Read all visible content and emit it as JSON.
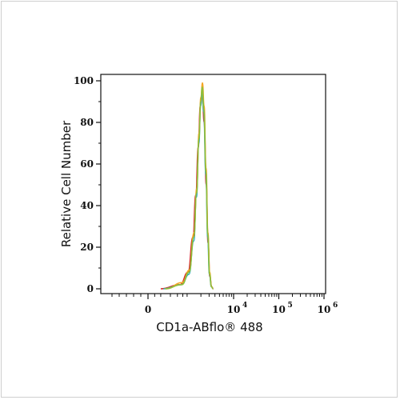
{
  "chart_data": {
    "type": "line",
    "title": "",
    "xlabel": "CD1a-ABflo® 488",
    "ylabel": "Relative Cell Number",
    "ylim": [
      0,
      100
    ],
    "x_scale": "biexponential",
    "y_ticks": [
      {
        "value": 0,
        "label": "0"
      },
      {
        "value": 20,
        "label": "20"
      },
      {
        "value": 40,
        "label": "40"
      },
      {
        "value": 60,
        "label": "60"
      },
      {
        "value": 80,
        "label": "80"
      },
      {
        "value": 100,
        "label": "100"
      }
    ],
    "x_ticks": [
      {
        "value": 0,
        "label": "0",
        "sup": ""
      },
      {
        "value": 10000,
        "label": "10",
        "sup": "4"
      },
      {
        "value": 100000,
        "label": "10",
        "sup": "5"
      },
      {
        "value": 1000000,
        "label": "10",
        "sup": "6"
      }
    ],
    "grid": false,
    "legend": "none",
    "series": [
      {
        "color": "#d62728",
        "points": [
          [
            200,
            0
          ],
          [
            700,
            2
          ],
          [
            1050,
            8
          ],
          [
            1350,
            25
          ],
          [
            1550,
            45
          ],
          [
            1750,
            68
          ],
          [
            1950,
            88
          ],
          [
            2150,
            93
          ],
          [
            2350,
            80
          ],
          [
            2600,
            50
          ],
          [
            2850,
            22
          ],
          [
            3100,
            6
          ],
          [
            3400,
            1
          ],
          [
            3700,
            0
          ]
        ]
      },
      {
        "color": "#2ca9bc",
        "points": [
          [
            250,
            0
          ],
          [
            750,
            2
          ],
          [
            1100,
            7
          ],
          [
            1400,
            23
          ],
          [
            1600,
            44
          ],
          [
            1800,
            70
          ],
          [
            1980,
            88
          ],
          [
            2120,
            95
          ],
          [
            2300,
            85
          ],
          [
            2550,
            55
          ],
          [
            2800,
            25
          ],
          [
            3050,
            7
          ],
          [
            3350,
            1
          ],
          [
            3650,
            0
          ]
        ]
      },
      {
        "color": "#f5a623",
        "points": [
          [
            300,
            0
          ],
          [
            780,
            3
          ],
          [
            1120,
            9
          ],
          [
            1420,
            27
          ],
          [
            1620,
            48
          ],
          [
            1820,
            75
          ],
          [
            2000,
            92
          ],
          [
            2160,
            99
          ],
          [
            2340,
            88
          ],
          [
            2580,
            58
          ],
          [
            2830,
            27
          ],
          [
            3080,
            8
          ],
          [
            3380,
            1
          ],
          [
            3680,
            0
          ]
        ]
      },
      {
        "color": "#8fbf3a",
        "points": [
          [
            280,
            0
          ],
          [
            760,
            2
          ],
          [
            1110,
            8
          ],
          [
            1410,
            25
          ],
          [
            1610,
            46
          ],
          [
            1810,
            72
          ],
          [
            1990,
            90
          ],
          [
            2140,
            97
          ],
          [
            2320,
            86
          ],
          [
            2570,
            56
          ],
          [
            2820,
            26
          ],
          [
            3070,
            7
          ],
          [
            3370,
            1
          ],
          [
            3670,
            0
          ]
        ]
      }
    ]
  }
}
